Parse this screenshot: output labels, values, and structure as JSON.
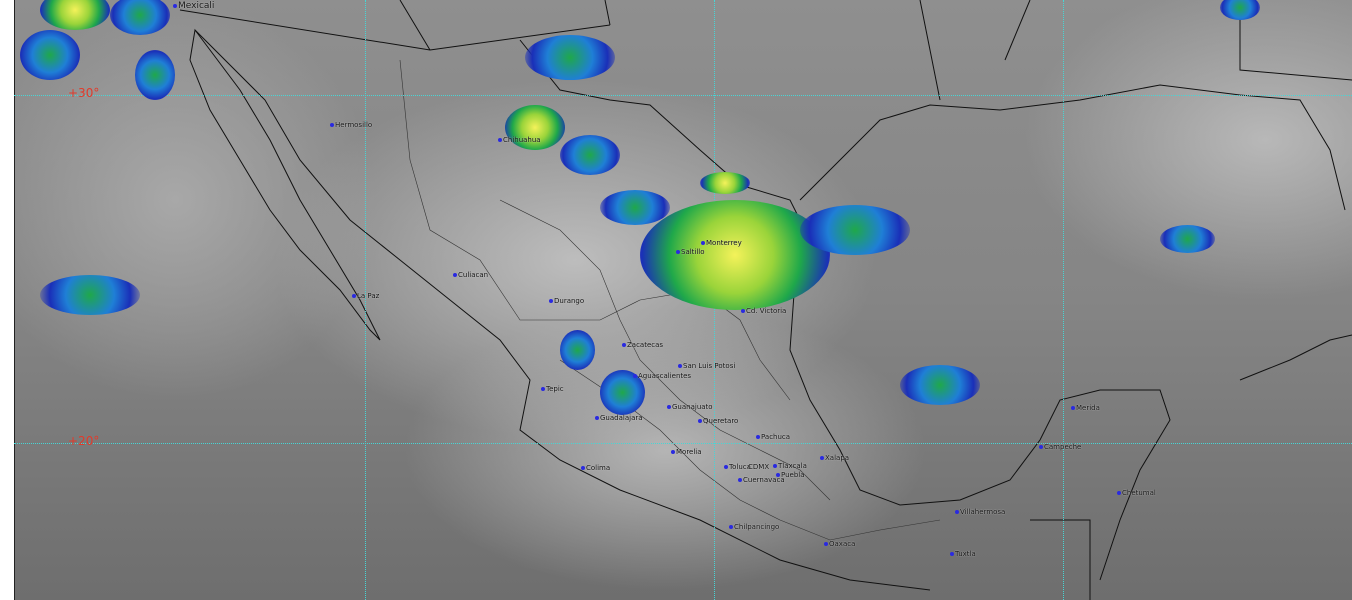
{
  "map": {
    "latitude_labels": [
      "+30°",
      "+20°"
    ],
    "gridline_color": "#46d6d6",
    "label_color": "#e23a2a",
    "cities": [
      "Mexicali",
      "Hermosillo",
      "Chihuahua",
      "Culiacan",
      "La Paz",
      "Durango",
      "Monterrey",
      "Saltillo",
      "Cd. Victoria",
      "Zacatecas",
      "San Luis Potosi",
      "Aguascalientes",
      "Tepic",
      "Guadalajara",
      "Guanajuato",
      "Queretaro",
      "Pachuca",
      "Morelia",
      "Colima",
      "Toluca",
      "CDMX",
      "Tlaxcala",
      "Puebla",
      "Cuernavaca",
      "Xalapa",
      "Chilpancingo",
      "Oaxaca",
      "Villahermosa",
      "Tuxtla",
      "Merida",
      "Campeche",
      "Chetumal"
    ]
  }
}
